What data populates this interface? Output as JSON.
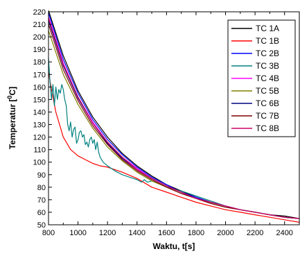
{
  "chart_data": {
    "type": "line",
    "xlabel": "Waktu, t[s]",
    "ylabel_main": "Temperatur [",
    "ylabel_sup": "0",
    "ylabel_tail": "C]",
    "xlim": [
      800,
      2500
    ],
    "ylim": [
      50,
      220
    ],
    "x_ticks": [
      800,
      1000,
      1200,
      1400,
      1600,
      1800,
      2000,
      2200,
      2400
    ],
    "y_ticks": [
      50,
      60,
      70,
      80,
      90,
      100,
      110,
      120,
      130,
      140,
      150,
      160,
      170,
      180,
      190,
      200,
      210,
      220
    ],
    "legend_position": "top-right",
    "series": [
      {
        "name": "TC 1A",
        "color": "#000000",
        "x": [
          800,
          900,
          1000,
          1100,
          1200,
          1300,
          1400,
          1500,
          1600,
          1700,
          1800,
          1900,
          2000,
          2100,
          2200,
          2300,
          2400,
          2500
        ],
        "y": [
          221,
          185,
          157,
          136,
          120,
          107,
          97,
          89,
          82,
          77,
          72,
          68,
          65,
          62,
          60,
          58,
          57,
          55
        ]
      },
      {
        "name": "TC 1B",
        "color": "#ff0000",
        "x": [
          800,
          820,
          850,
          880,
          900,
          950,
          1000,
          1050,
          1100,
          1150,
          1200,
          1300,
          1400,
          1500,
          1600,
          1700,
          1800,
          1900,
          2000,
          2100,
          2200,
          2300,
          2400,
          2500
        ],
        "y": [
          172,
          158,
          140,
          128,
          120,
          110,
          105,
          102,
          99,
          97,
          96,
          92,
          87,
          80,
          76,
          72,
          68,
          65,
          62,
          60,
          58,
          56,
          54,
          52
        ]
      },
      {
        "name": "TC 2B",
        "color": "#0000ff",
        "x": [
          800,
          900,
          1000,
          1100,
          1200,
          1300,
          1400,
          1500,
          1600,
          1700,
          1800,
          1900,
          2000,
          2100,
          2200,
          2300,
          2400,
          2500
        ],
        "y": [
          219,
          182,
          155,
          134,
          118,
          106,
          96,
          88,
          82,
          76,
          72,
          68,
          65,
          62,
          60,
          58,
          56,
          55
        ]
      },
      {
        "name": "TC 3B",
        "color": "#008080",
        "x": [
          800,
          810,
          820,
          830,
          840,
          850,
          860,
          870,
          880,
          890,
          900,
          910,
          920,
          930,
          940,
          950,
          960,
          970,
          980,
          990,
          1000,
          1010,
          1020,
          1030,
          1040,
          1050,
          1060,
          1070,
          1080,
          1090,
          1100,
          1110,
          1120,
          1130,
          1140,
          1150,
          1170,
          1200,
          1250,
          1300,
          1350,
          1400,
          1430,
          1450,
          1470,
          1500,
          1550,
          1600,
          1700,
          1800,
          1900,
          2000,
          2100,
          2200,
          2300,
          2400,
          2500
        ],
        "y": [
          183,
          165,
          150,
          162,
          145,
          160,
          150,
          158,
          155,
          162,
          158,
          150,
          145,
          130,
          125,
          132,
          120,
          126,
          128,
          115,
          118,
          124,
          125,
          120,
          122,
          114,
          116,
          112,
          118,
          120,
          115,
          118,
          110,
          116,
          108,
          104,
          100,
          97,
          93,
          90,
          88,
          86,
          84,
          86,
          84,
          85,
          83,
          80,
          77,
          73,
          69,
          65,
          62,
          60,
          58,
          56,
          55
        ]
      },
      {
        "name": "TC 4B",
        "color": "#ff00ff",
        "x": [
          800,
          900,
          1000,
          1100,
          1200,
          1300,
          1400,
          1500,
          1600,
          1700,
          1800,
          1900,
          2000,
          2100,
          2200,
          2300,
          2400,
          2500
        ],
        "y": [
          216,
          179,
          152,
          132,
          116,
          104,
          95,
          87,
          81,
          76,
          71,
          68,
          65,
          62,
          60,
          58,
          56,
          55
        ]
      },
      {
        "name": "TC 5B",
        "color": "#808000",
        "x": [
          800,
          900,
          1000,
          1100,
          1200,
          1300,
          1400,
          1500,
          1600,
          1700,
          1800,
          1900,
          2000,
          2100,
          2200,
          2300,
          2400,
          2500
        ],
        "y": [
          205,
          170,
          146,
          127,
          112,
          101,
          92,
          85,
          80,
          75,
          71,
          67,
          64,
          62,
          60,
          58,
          56,
          55
        ]
      },
      {
        "name": "TC 6B",
        "color": "#000080",
        "x": [
          800,
          900,
          1000,
          1100,
          1200,
          1300,
          1400,
          1500,
          1600,
          1700,
          1800,
          1900,
          2000,
          2100,
          2200,
          2300,
          2400,
          2500
        ],
        "y": [
          213,
          177,
          151,
          131,
          115,
          103,
          94,
          87,
          81,
          76,
          71,
          68,
          65,
          62,
          60,
          58,
          56,
          55
        ]
      },
      {
        "name": "TC 7B",
        "color": "#800000",
        "x": [
          800,
          900,
          1000,
          1100,
          1200,
          1300,
          1400,
          1500,
          1600,
          1700,
          1800,
          1900,
          2000,
          2100,
          2200,
          2300,
          2400,
          2500
        ],
        "y": [
          210,
          174,
          149,
          129,
          114,
          102,
          93,
          86,
          80,
          75,
          71,
          67,
          64,
          62,
          60,
          58,
          56,
          55
        ]
      },
      {
        "name": "TC 8B",
        "color": "#cc0066",
        "x": [
          800,
          900,
          1000,
          1100,
          1200,
          1300,
          1400,
          1500,
          1600,
          1700,
          1800,
          1900,
          2000,
          2100,
          2200,
          2300,
          2400,
          2500
        ],
        "y": [
          215,
          178,
          152,
          131,
          116,
          104,
          94,
          87,
          81,
          76,
          71,
          68,
          65,
          62,
          60,
          58,
          56,
          55
        ]
      }
    ]
  }
}
